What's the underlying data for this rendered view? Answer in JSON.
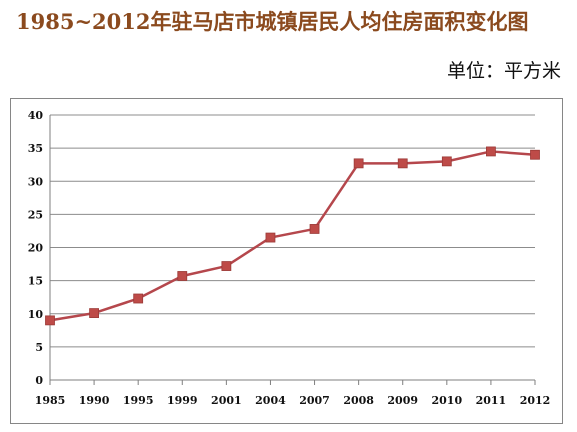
{
  "header": {
    "title": "1985~2012年驻马店市城镇居民人均住房面积变化图",
    "unit": "单位：平方米"
  },
  "colors": {
    "title": "#8b4a1e",
    "series_line": "#b5474c",
    "marker": "#be4b48",
    "grid": "#8c8c8c"
  },
  "chart_data": {
    "type": "line",
    "title": "1985~2012年驻马店市城镇居民人均住房面积变化图",
    "xlabel": "",
    "ylabel": "",
    "ylim": [
      0,
      40
    ],
    "yticks": [
      "0",
      "5",
      "10",
      "15",
      "20",
      "25",
      "30",
      "35",
      "40"
    ],
    "categories": [
      "1985",
      "1990",
      "1995",
      "1999",
      "2001",
      "2004",
      "2007",
      "2008",
      "2009",
      "2010",
      "2011",
      "2012"
    ],
    "series": [
      {
        "values": [
          9.0,
          10.1,
          12.3,
          15.7,
          17.2,
          21.5,
          22.8,
          32.7,
          32.7,
          33.0,
          34.5,
          34.0
        ],
        "marker": "square"
      }
    ],
    "grid": true,
    "legend": "none"
  }
}
